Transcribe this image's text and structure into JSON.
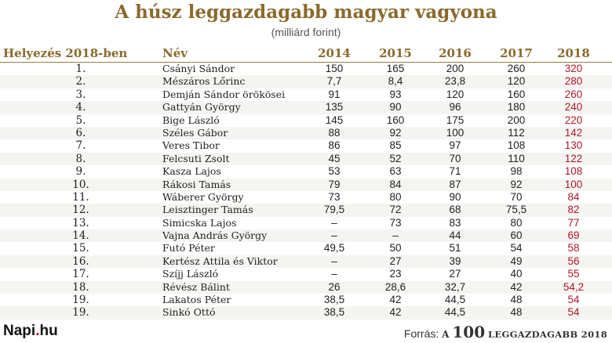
{
  "title": "A húsz leggazdagabb magyar vagyona",
  "subtitle": "(milliárd forint)",
  "chart_data": {
    "type": "table",
    "title": "A húsz leggazdagabb magyar vagyona",
    "subtitle": "(milliárd forint)",
    "columns": [
      "Helyezés 2018-ben",
      "Név",
      "2014",
      "2015",
      "2016",
      "2017",
      "2018"
    ],
    "rows": [
      [
        "1.",
        "Csányi Sándor",
        "150",
        "165",
        "200",
        "260",
        "320"
      ],
      [
        "2.",
        "Mészáros Lőrinc",
        "7,7",
        "8,4",
        "23,8",
        "120",
        "280"
      ],
      [
        "3.",
        "Demján Sándor örökösei",
        "91",
        "93",
        "120",
        "160",
        "260"
      ],
      [
        "4.",
        "Gattyán György",
        "135",
        "90",
        "96",
        "180",
        "240"
      ],
      [
        "5.",
        "Bige László",
        "145",
        "160",
        "175",
        "200",
        "220"
      ],
      [
        "6.",
        "Széles Gábor",
        "88",
        "92",
        "100",
        "112",
        "142"
      ],
      [
        "7.",
        "Veres Tibor",
        "86",
        "85",
        "97",
        "108",
        "130"
      ],
      [
        "8.",
        "Felcsuti Zsolt",
        "45",
        "52",
        "70",
        "110",
        "122"
      ],
      [
        "9.",
        "Kasza Lajos",
        "53",
        "63",
        "71",
        "98",
        "108"
      ],
      [
        "10.",
        "Rákosi Tamás",
        "79",
        "84",
        "87",
        "92",
        "100"
      ],
      [
        "11.",
        "Wáberer György",
        "73",
        "80",
        "90",
        "70",
        "84"
      ],
      [
        "12.",
        "Leisztinger Tamás",
        "79,5",
        "72",
        "68",
        "75,5",
        "82"
      ],
      [
        "13.",
        "Simicska Lajos",
        "–",
        "73",
        "83",
        "80",
        "77"
      ],
      [
        "14.",
        "Vajna András György",
        "–",
        "–",
        "44",
        "60",
        "69"
      ],
      [
        "15.",
        "Futó Péter",
        "49,5",
        "50",
        "51",
        "54",
        "58"
      ],
      [
        "16.",
        "Kertész Attila és Viktor",
        "–",
        "27",
        "39",
        "49",
        "56"
      ],
      [
        "17.",
        "Szíjj László",
        "–",
        "23",
        "27",
        "40",
        "55"
      ],
      [
        "18.",
        "Révész Bálint",
        "26",
        "28,6",
        "32,7",
        "42",
        "54,2"
      ],
      [
        "19.",
        "Lakatos Péter",
        "38,5",
        "42",
        "44,5",
        "48",
        "54"
      ],
      [
        "19.",
        "Sinkó Ottó",
        "38,5",
        "42",
        "44,5",
        "48",
        "54"
      ]
    ],
    "highlight_column_color": "#b0172a",
    "header_color": "#8a6a2c"
  },
  "footer": {
    "logo_main": "Napi",
    "logo_dot": ".",
    "logo_tld": "hu",
    "source_label": "Forrás:",
    "source_a": "A",
    "source_num": "100",
    "source_rest": "LEGGAZDAGABB 2018"
  }
}
